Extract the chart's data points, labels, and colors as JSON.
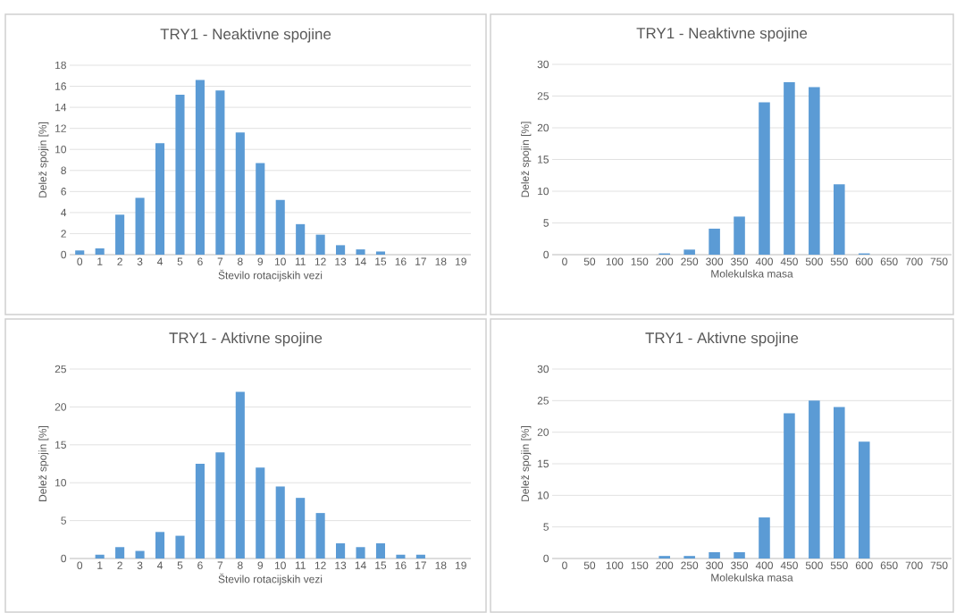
{
  "chart_data": [
    {
      "type": "bar",
      "title": "TRY1 - Neaktivne spojine",
      "xlabel": "Število rotacijskih vezi",
      "ylabel": "Delež spojin [%]",
      "color": "#5b9bd5",
      "grid": "y",
      "categories": [
        "0",
        "1",
        "2",
        "3",
        "4",
        "5",
        "6",
        "7",
        "8",
        "9",
        "10",
        "11",
        "12",
        "13",
        "14",
        "15",
        "16",
        "17",
        "18",
        "19"
      ],
      "values": [
        0.4,
        0.6,
        3.8,
        5.4,
        10.6,
        15.2,
        16.6,
        15.6,
        11.6,
        8.7,
        5.2,
        2.9,
        1.9,
        0.9,
        0.5,
        0.3,
        0,
        0,
        0,
        0
      ],
      "ylim": [
        0,
        18
      ],
      "yticks": [
        0,
        2,
        4,
        6,
        8,
        10,
        12,
        14,
        16,
        18
      ]
    },
    {
      "type": "bar",
      "title": "TRY1 - Neaktivne spojine",
      "xlabel": "Molekulska masa",
      "ylabel": "Delež spojin [%]",
      "color": "#5b9bd5",
      "grid": "y",
      "categories": [
        "0",
        "50",
        "100",
        "150",
        "200",
        "250",
        "300",
        "350",
        "400",
        "450",
        "500",
        "550",
        "600",
        "650",
        "700",
        "750"
      ],
      "values": [
        0,
        0,
        0,
        0,
        0.2,
        0.8,
        4.1,
        6,
        24,
        27.2,
        26.4,
        11.1,
        0.2,
        0,
        0,
        0
      ],
      "ylim": [
        0,
        30
      ],
      "yticks": [
        0,
        5,
        10,
        15,
        20,
        25,
        30
      ]
    },
    {
      "type": "bar",
      "title": "TRY1 - Aktivne spojine",
      "xlabel": "Število rotacijskih vezi",
      "ylabel": "Delež spojin [%]",
      "color": "#5b9bd5",
      "grid": "y",
      "categories": [
        "0",
        "1",
        "2",
        "3",
        "4",
        "5",
        "6",
        "7",
        "8",
        "9",
        "10",
        "11",
        "12",
        "13",
        "14",
        "15",
        "16",
        "17",
        "18",
        "19"
      ],
      "values": [
        0,
        0.5,
        1.5,
        1,
        3.5,
        3,
        12.5,
        14,
        22,
        12,
        9.5,
        8,
        6,
        2,
        1.5,
        2,
        0.5,
        0.5,
        0,
        0
      ],
      "ylim": [
        0,
        25
      ],
      "yticks": [
        0,
        5,
        10,
        15,
        20,
        25
      ]
    },
    {
      "type": "bar",
      "title": "TRY1 - Aktivne spojine",
      "xlabel": "Molekulska masa",
      "ylabel": "Delež spojin [%]",
      "color": "#5b9bd5",
      "grid": "y",
      "categories": [
        "0",
        "50",
        "100",
        "150",
        "200",
        "250",
        "300",
        "350",
        "400",
        "450",
        "500",
        "550",
        "600",
        "650",
        "700",
        "750"
      ],
      "values": [
        0,
        0,
        0,
        0,
        0.4,
        0.4,
        1,
        1,
        6.5,
        23,
        25,
        24,
        18.5,
        0,
        0,
        0
      ],
      "ylim": [
        0,
        30
      ],
      "yticks": [
        0,
        5,
        10,
        15,
        20,
        25,
        30
      ]
    }
  ]
}
